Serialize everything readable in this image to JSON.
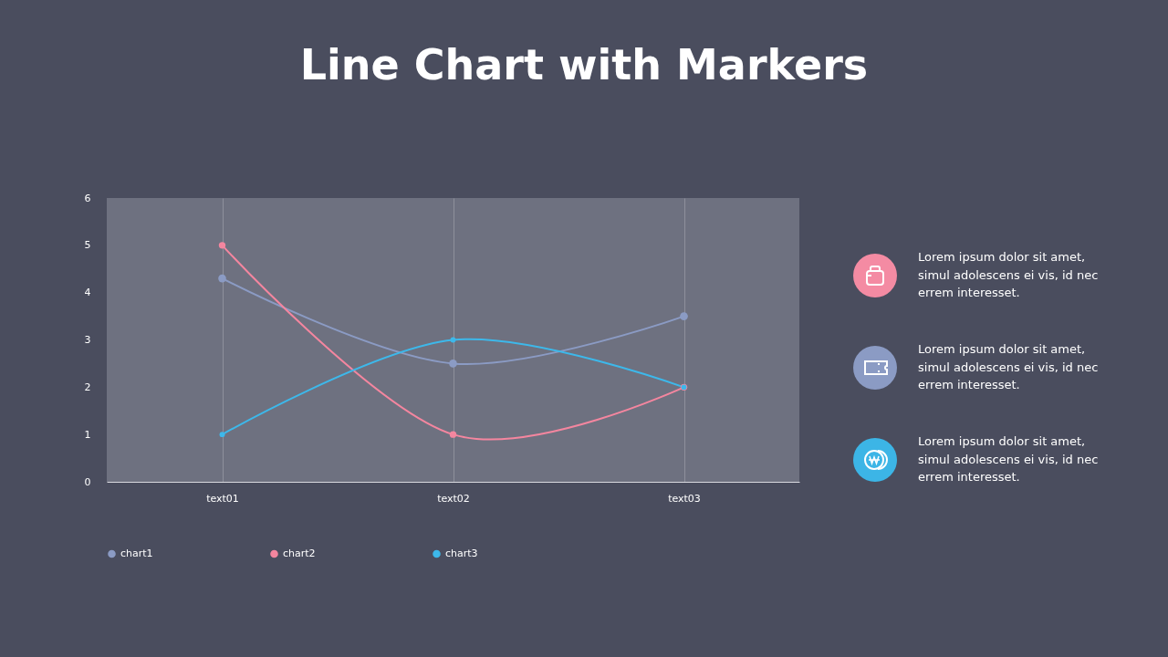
{
  "chart_data": {
    "type": "line",
    "title": "Line Chart with Markers",
    "categories": [
      "text01",
      "text02",
      "text03"
    ],
    "series": [
      {
        "name": "chart1",
        "color": "#8b9bc4",
        "values": [
          4.3,
          2.5,
          3.5
        ]
      },
      {
        "name": "chart2",
        "color": "#f4869f",
        "values": [
          5,
          1,
          2
        ]
      },
      {
        "name": "chart3",
        "color": "#3db8ea",
        "values": [
          1,
          3,
          2
        ]
      }
    ],
    "ylim": [
      0,
      6
    ],
    "yticks": [
      0,
      1,
      2,
      3,
      4,
      5,
      6
    ],
    "grid": "x",
    "legend": "bottom",
    "marker": "circle",
    "line_style": "solid",
    "annotations": [
      "Lorem ipsum dolor sit amet, simul adolescens ei vis, id nec errem interesset.",
      "Lorem ipsum dolor sit amet, simul adolescens ei vis, id nec errem interesset.",
      "Lorem ipsum dolor sit amet, simul adolescens ei vis, id nec errem interesset."
    ]
  }
}
